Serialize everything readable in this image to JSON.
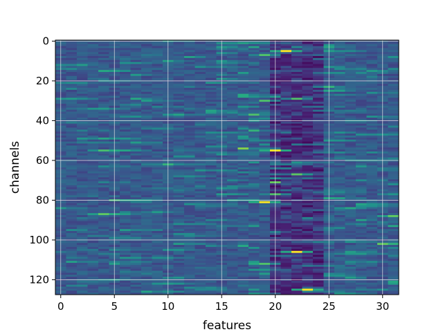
{
  "chart_data": {
    "type": "heatmap",
    "title": "",
    "xlabel": "features",
    "ylabel": "channels",
    "x_range": [
      -0.5,
      31.5
    ],
    "y_range": [
      127.5,
      -0.5
    ],
    "y_inverted": true,
    "n_columns": 32,
    "n_rows": 128,
    "x_ticks": [
      "0",
      "5",
      "10",
      "15",
      "20",
      "25",
      "30"
    ],
    "x_tick_values": [
      0,
      5,
      10,
      15,
      20,
      25,
      30
    ],
    "y_ticks": [
      "0",
      "20",
      "40",
      "60",
      "80",
      "100",
      "120"
    ],
    "y_tick_values": [
      0,
      20,
      40,
      60,
      80,
      100,
      120
    ],
    "grid": true,
    "colormap": "viridis",
    "colors": {
      "low": "#440154",
      "mid_low": "#3b528b",
      "mid": "#21918c",
      "mid_high": "#5ec962",
      "high": "#fde725",
      "grid": "#e6e6e6"
    },
    "highlights": [
      {
        "feature": 21,
        "channel": 5,
        "level": "high"
      },
      {
        "feature": 20,
        "channel": 55,
        "level": "high"
      },
      {
        "feature": 19,
        "channel": 81,
        "level": "high"
      },
      {
        "feature": 22,
        "channel": 106,
        "level": "high"
      },
      {
        "feature": 23,
        "channel": 125,
        "level": "high"
      },
      {
        "feature": 19,
        "channel": 7,
        "level": "mid_high"
      },
      {
        "feature": 18,
        "channel": 37,
        "level": "mid_high"
      },
      {
        "feature": 20,
        "channel": 77,
        "level": "mid_high"
      },
      {
        "feature": 19,
        "channel": 112,
        "level": "mid_high"
      },
      {
        "feature": 22,
        "channel": 29,
        "level": "mid_high"
      }
    ],
    "dark_band_features": [
      20,
      21,
      22,
      23,
      24
    ]
  }
}
